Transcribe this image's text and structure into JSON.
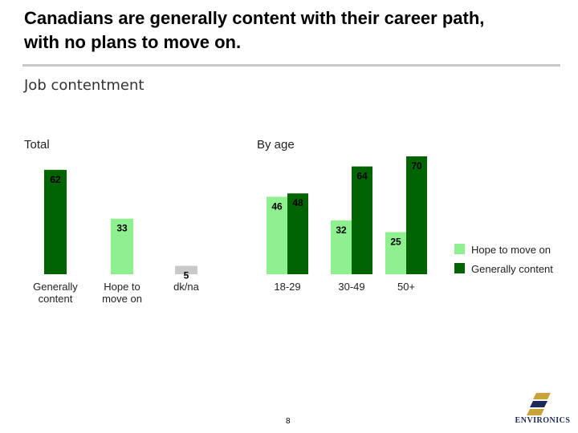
{
  "header": {
    "title_line1": "Canadians are generally content with their career path,",
    "title_line2": "with no plans to move on.",
    "subtitle": "Job contentment"
  },
  "sections": {
    "total_label": "Total",
    "by_age_label": "By age"
  },
  "colors": {
    "generally_content": "#006400",
    "hope_to_move_on": "#8ef08e",
    "dk_na": "#c9c9c9"
  },
  "chart_data": [
    {
      "type": "bar",
      "title": "Total",
      "categories": [
        "Generally content",
        "Hope to move on",
        "dk/na"
      ],
      "values": [
        62,
        33,
        5
      ],
      "colors": [
        "#006400",
        "#8ef08e",
        "#c9c9c9"
      ],
      "ylim": [
        0,
        75
      ]
    },
    {
      "type": "bar",
      "title": "By age",
      "categories": [
        "18-29",
        "30-49",
        "50+"
      ],
      "series": [
        {
          "name": "Hope to move on",
          "values": [
            46,
            32,
            25
          ],
          "color": "#8ef08e"
        },
        {
          "name": "Generally content",
          "values": [
            48,
            64,
            70
          ],
          "color": "#006400"
        }
      ],
      "ylim": [
        0,
        75
      ],
      "legend": "right"
    }
  ],
  "footer": {
    "page_number": "8",
    "logo_text": "ENVIRONICS"
  }
}
